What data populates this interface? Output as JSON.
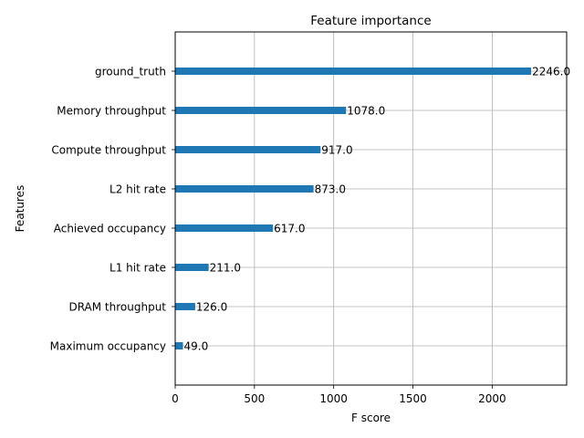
{
  "chart_data": {
    "type": "bar",
    "orientation": "horizontal",
    "title": "Feature importance",
    "xlabel": "F score",
    "ylabel": "Features",
    "xlim": [
      0,
      2470
    ],
    "xticks": [
      0,
      500,
      1000,
      1500,
      2000
    ],
    "grid": true,
    "bar_color": "#1f77b4",
    "categories": [
      "ground_truth",
      "Memory throughput",
      "Compute throughput",
      "L2 hit rate",
      "Achieved occupancy",
      "L1 hit rate",
      "DRAM throughput",
      "Maximum occupancy"
    ],
    "values": [
      2246.0,
      1078.0,
      917.0,
      873.0,
      617.0,
      211.0,
      126.0,
      49.0
    ],
    "value_labels": [
      "2246.0",
      "1078.0",
      "917.0",
      "873.0",
      "617.0",
      "211.0",
      "126.0",
      "49.0"
    ]
  }
}
